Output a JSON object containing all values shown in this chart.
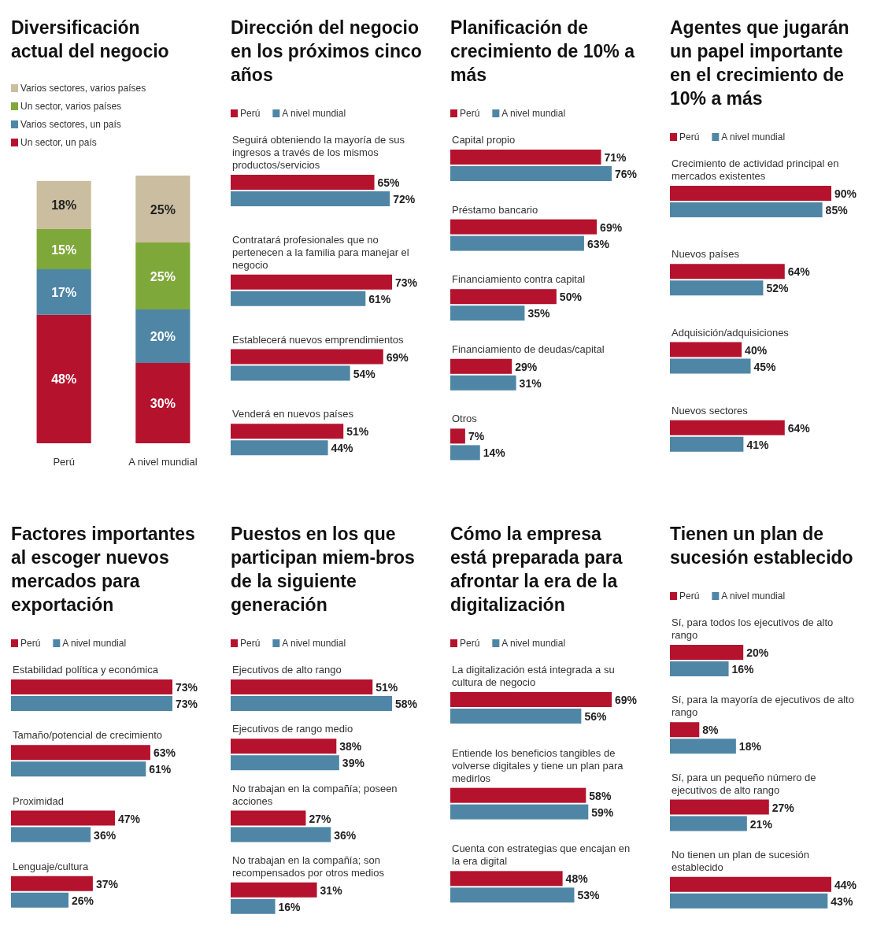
{
  "chart_data": [
    {
      "type": "bar",
      "stacked": true,
      "title": "Diversificación actual del negocio",
      "categories": [
        "Perú",
        "A nivel mundial"
      ],
      "legend": "top left",
      "series": [
        {
          "name": "Un sector, un país",
          "color": "#b5122e",
          "values": [
            48,
            30
          ],
          "value_labels": [
            "48%",
            "30%"
          ]
        },
        {
          "name": "Varios sectores, un país",
          "color": "#4f86a6",
          "values": [
            17,
            20
          ],
          "value_labels": [
            "17%",
            "20%"
          ]
        },
        {
          "name": "Un sector, varios países",
          "color": "#7fa83a",
          "values": [
            15,
            25
          ],
          "value_labels": [
            "15%",
            "25%"
          ]
        },
        {
          "name": "Varios sectores, varios países",
          "color": "#cbbd9f",
          "values": [
            18,
            25
          ],
          "value_labels": [
            "18%",
            "25%"
          ]
        }
      ]
    },
    {
      "type": "bar",
      "orientation": "horizontal",
      "title": "Dirección del negocio en los próximos cinco años",
      "legend": "top left",
      "categories": [
        "Seguirá obteniendo la mayoría de sus ingresos a través de los mismos productos/servicios",
        "Contratará profesionales que no pertenecen a la familia para manejar el negocio",
        "Establecerá nuevos emprendimientos",
        "Venderá en nuevos países"
      ],
      "series": [
        {
          "name": "Perú",
          "color": "#b5122e",
          "values": [
            65,
            73,
            69,
            51
          ],
          "value_labels": [
            "65%",
            "73%",
            "69%",
            "51%"
          ]
        },
        {
          "name": "A nivel mundial",
          "color": "#4f86a6",
          "values": [
            72,
            61,
            54,
            44
          ],
          "value_labels": [
            "72%",
            "61%",
            "54%",
            "44%"
          ]
        }
      ]
    },
    {
      "type": "bar",
      "orientation": "horizontal",
      "title": "Planificación de crecimiento de 10% a más",
      "legend": "top left",
      "categories": [
        "Capital propio",
        "Préstamo bancario",
        "Financiamiento contra capital",
        "Financiamiento de deudas/capital",
        "Otros"
      ],
      "series": [
        {
          "name": "Perú",
          "color": "#b5122e",
          "values": [
            71,
            69,
            50,
            29,
            7
          ],
          "value_labels": [
            "71%",
            "69%",
            "50%",
            "29%",
            "7%"
          ]
        },
        {
          "name": "A nivel mundial",
          "color": "#4f86a6",
          "values": [
            76,
            63,
            35,
            31,
            14
          ],
          "value_labels": [
            "76%",
            "63%",
            "35%",
            "31%",
            "14%"
          ]
        }
      ]
    },
    {
      "type": "bar",
      "orientation": "horizontal",
      "title": "Agentes que jugarán un papel importante en el crecimiento de 10% a más",
      "legend": "top left",
      "categories": [
        "Crecimiento de actividad principal en mercados existentes",
        "Nuevos países",
        "Adquisición/adquisiciones",
        "Nuevos sectores"
      ],
      "series": [
        {
          "name": "Perú",
          "color": "#b5122e",
          "values": [
            90,
            64,
            40,
            64
          ],
          "value_labels": [
            "90%",
            "64%",
            "40%",
            "64%"
          ]
        },
        {
          "name": "A nivel mundial",
          "color": "#4f86a6",
          "values": [
            85,
            52,
            45,
            41
          ],
          "value_labels": [
            "85%",
            "52%",
            "45%",
            "41%"
          ]
        }
      ]
    },
    {
      "type": "bar",
      "orientation": "horizontal",
      "title": "Factores importantes al escoger nuevos mercados para exportación",
      "legend": "top left",
      "categories": [
        "Estabilidad política y económica",
        "Tamaño/potencial de crecimiento",
        "Proximidad",
        "Lenguaje/cultura"
      ],
      "series": [
        {
          "name": "Perú",
          "color": "#b5122e",
          "values": [
            73,
            63,
            47,
            37
          ],
          "value_labels": [
            "73%",
            "63%",
            "47%",
            "37%"
          ]
        },
        {
          "name": "A nivel mundial",
          "color": "#4f86a6",
          "values": [
            73,
            61,
            36,
            26
          ],
          "value_labels": [
            "73%",
            "61%",
            "36%",
            "26%"
          ]
        }
      ]
    },
    {
      "type": "bar",
      "orientation": "horizontal",
      "title": "Puestos en los que participan miem-bros de la siguiente generación",
      "legend": "top left",
      "categories": [
        "Ejecutivos de alto rango",
        "Ejecutivos de rango medio",
        "No trabajan en la compañía; poseen acciones",
        "No trabajan en la compañía; son recompensados por otros medios"
      ],
      "series": [
        {
          "name": "Perú",
          "color": "#b5122e",
          "values": [
            51,
            38,
            27,
            31
          ],
          "value_labels": [
            "51%",
            "38%",
            "27%",
            "31%"
          ]
        },
        {
          "name": "A nivel mundial",
          "color": "#4f86a6",
          "values": [
            58,
            39,
            36,
            16
          ],
          "value_labels": [
            "58%",
            "39%",
            "36%",
            "16%"
          ]
        }
      ]
    },
    {
      "type": "bar",
      "orientation": "horizontal",
      "title": "Cómo la empresa está preparada para afrontar la era de la digitalización",
      "legend": "top left",
      "categories": [
        "La digitalización está integrada a su cultura de negocio",
        "Entiende los beneficios tangibles de volverse digitales y tiene un plan para medirlos",
        "Cuenta con estrategias que encajan en la era digital"
      ],
      "series": [
        {
          "name": "Perú",
          "color": "#b5122e",
          "values": [
            69,
            58,
            48
          ],
          "value_labels": [
            "69%",
            "58%",
            "48%"
          ]
        },
        {
          "name": "A nivel mundial",
          "color": "#4f86a6",
          "values": [
            56,
            59,
            53
          ],
          "value_labels": [
            "56%",
            "59%",
            "53%"
          ]
        }
      ]
    },
    {
      "type": "bar",
      "orientation": "horizontal",
      "title": "Tienen un plan de sucesión establecido",
      "legend": "top left",
      "categories": [
        "Sí, para todos los ejecutivos de alto rango",
        "Sí, para la mayoría de ejecutivos de alto rango",
        "Sí, para un pequeño número de ejecutivos de alto rango",
        "No tienen un plan de sucesión establecido"
      ],
      "series": [
        {
          "name": "Perú",
          "color": "#b5122e",
          "values": [
            20,
            8,
            27,
            44
          ],
          "value_labels": [
            "20%",
            "8%",
            "27%",
            "44%"
          ]
        },
        {
          "name": "A nivel mundial",
          "color": "#4f86a6",
          "values": [
            16,
            18,
            21,
            43
          ],
          "value_labels": [
            "16%",
            "18%",
            "21%",
            "43%"
          ]
        }
      ]
    }
  ]
}
